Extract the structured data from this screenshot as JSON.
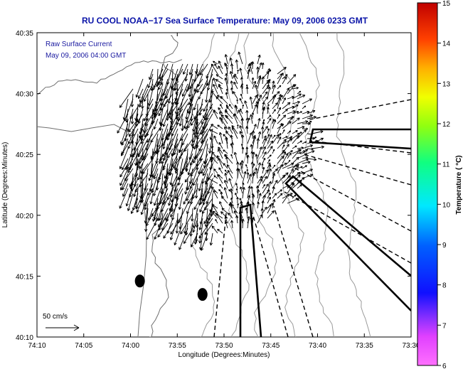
{
  "chart_data": {
    "type": "vector-field",
    "title": "RU COOL  NOAA−17  Sea Surface Temperature:  May 09, 2006 0233 GMT",
    "annotation_lines": [
      "Raw Surface Current",
      "May 09, 2006 04:00 GMT"
    ],
    "xlabel": "Longitude (Degrees:Minutes)",
    "ylabel": "Latitude (Degrees:Minutes)",
    "x_ticks": [
      "74:10",
      "74:05",
      "74:00",
      "73:55",
      "73:50",
      "73:45",
      "73:40",
      "73:35",
      "73:30"
    ],
    "y_ticks": [
      "40:10",
      "40:15",
      "40:20",
      "40:25",
      "40:30",
      "40:35"
    ],
    "xlim_minutes": [
      -610,
      -570
    ],
    "ylim_minutes": [
      2410,
      2435
    ],
    "scale_arrow_label": "50 cm/s",
    "colorbar": {
      "label": "Temperature ( °C)",
      "range": [
        6,
        15
      ],
      "ticks": [
        "6",
        "7",
        "8",
        "9",
        "10",
        "11",
        "12",
        "13",
        "14",
        "15"
      ]
    },
    "radar_sites": [
      {
        "lon_min": -599,
        "lat_min": 2414.6
      },
      {
        "lon_min": -592.3,
        "lat_min": 2413.5
      }
    ],
    "colors": {
      "title": "#0a14a8",
      "annotation": "#1a1aa0",
      "land_contour": "#777777",
      "bathymetry": "#999999"
    }
  }
}
